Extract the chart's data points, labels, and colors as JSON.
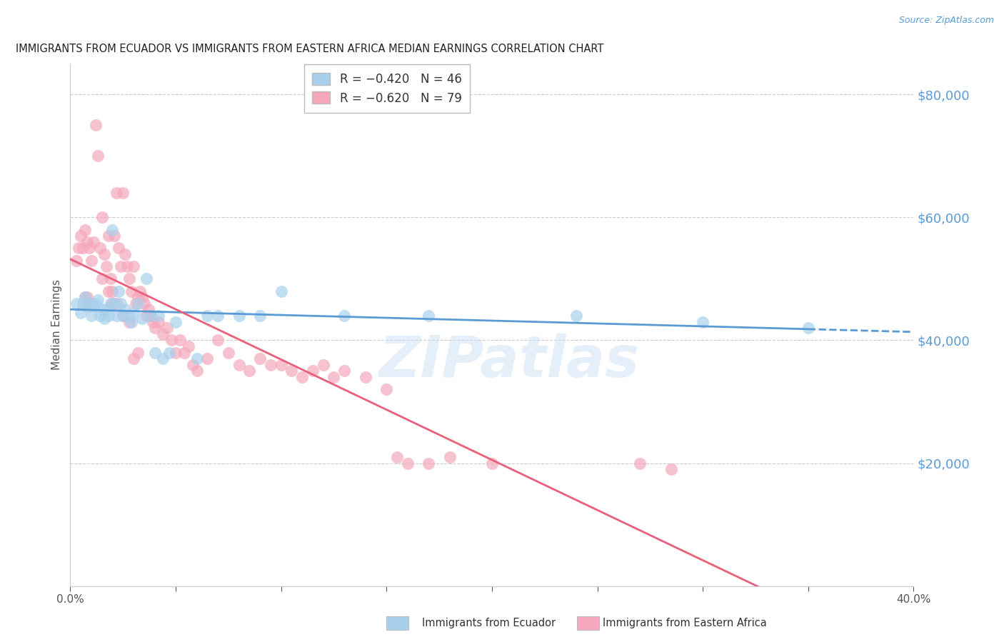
{
  "title": "IMMIGRANTS FROM ECUADOR VS IMMIGRANTS FROM EASTERN AFRICA MEDIAN EARNINGS CORRELATION CHART",
  "source": "Source: ZipAtlas.com",
  "ylabel": "Median Earnings",
  "ylim": [
    0,
    85000
  ],
  "xlim": [
    0.0,
    0.4
  ],
  "y_ticks": [
    20000,
    40000,
    60000,
    80000
  ],
  "legend_label1": "Immigrants from Ecuador",
  "legend_label2": "Immigrants from Eastern Africa",
  "ecuador_color": "#a8d0ec",
  "eastern_africa_color": "#f5a8bb",
  "trendline_ecuador_color": "#5b9bd5",
  "trendline_eastern_africa_color": "#e8607a",
  "watermark": "ZIPatlas",
  "ecuador_points": [
    [
      0.003,
      46000
    ],
    [
      0.005,
      44500
    ],
    [
      0.006,
      46000
    ],
    [
      0.007,
      47000
    ],
    [
      0.008,
      45500
    ],
    [
      0.009,
      46000
    ],
    [
      0.01,
      44000
    ],
    [
      0.011,
      45500
    ],
    [
      0.012,
      46000
    ],
    [
      0.013,
      46500
    ],
    [
      0.014,
      44000
    ],
    [
      0.015,
      45000
    ],
    [
      0.016,
      43500
    ],
    [
      0.017,
      45000
    ],
    [
      0.018,
      44000
    ],
    [
      0.019,
      46000
    ],
    [
      0.02,
      58000
    ],
    [
      0.021,
      46000
    ],
    [
      0.022,
      44000
    ],
    [
      0.023,
      48000
    ],
    [
      0.024,
      46000
    ],
    [
      0.025,
      44000
    ],
    [
      0.026,
      45000
    ],
    [
      0.028,
      44000
    ],
    [
      0.029,
      43000
    ],
    [
      0.03,
      44500
    ],
    [
      0.032,
      46000
    ],
    [
      0.034,
      43500
    ],
    [
      0.036,
      50000
    ],
    [
      0.038,
      44000
    ],
    [
      0.04,
      38000
    ],
    [
      0.042,
      44000
    ],
    [
      0.044,
      37000
    ],
    [
      0.047,
      38000
    ],
    [
      0.05,
      43000
    ],
    [
      0.06,
      37000
    ],
    [
      0.065,
      44000
    ],
    [
      0.07,
      44000
    ],
    [
      0.08,
      44000
    ],
    [
      0.09,
      44000
    ],
    [
      0.1,
      48000
    ],
    [
      0.13,
      44000
    ],
    [
      0.17,
      44000
    ],
    [
      0.24,
      44000
    ],
    [
      0.3,
      43000
    ],
    [
      0.35,
      42000
    ]
  ],
  "eastern_africa_points": [
    [
      0.003,
      53000
    ],
    [
      0.004,
      55000
    ],
    [
      0.005,
      57000
    ],
    [
      0.006,
      55000
    ],
    [
      0.007,
      58000
    ],
    [
      0.008,
      56000
    ],
    [
      0.009,
      55000
    ],
    [
      0.01,
      53000
    ],
    [
      0.011,
      56000
    ],
    [
      0.012,
      75000
    ],
    [
      0.013,
      70000
    ],
    [
      0.014,
      55000
    ],
    [
      0.015,
      60000
    ],
    [
      0.016,
      54000
    ],
    [
      0.017,
      52000
    ],
    [
      0.018,
      57000
    ],
    [
      0.019,
      50000
    ],
    [
      0.02,
      48000
    ],
    [
      0.021,
      57000
    ],
    [
      0.022,
      64000
    ],
    [
      0.023,
      55000
    ],
    [
      0.024,
      52000
    ],
    [
      0.025,
      64000
    ],
    [
      0.026,
      54000
    ],
    [
      0.027,
      52000
    ],
    [
      0.028,
      50000
    ],
    [
      0.029,
      48000
    ],
    [
      0.03,
      52000
    ],
    [
      0.031,
      46000
    ],
    [
      0.032,
      47000
    ],
    [
      0.033,
      48000
    ],
    [
      0.034,
      47000
    ],
    [
      0.035,
      46000
    ],
    [
      0.036,
      44000
    ],
    [
      0.037,
      45000
    ],
    [
      0.038,
      44000
    ],
    [
      0.039,
      43000
    ],
    [
      0.04,
      42000
    ],
    [
      0.042,
      43000
    ],
    [
      0.044,
      41000
    ],
    [
      0.046,
      42000
    ],
    [
      0.048,
      40000
    ],
    [
      0.05,
      38000
    ],
    [
      0.052,
      40000
    ],
    [
      0.054,
      38000
    ],
    [
      0.056,
      39000
    ],
    [
      0.058,
      36000
    ],
    [
      0.06,
      35000
    ],
    [
      0.065,
      37000
    ],
    [
      0.07,
      40000
    ],
    [
      0.075,
      38000
    ],
    [
      0.08,
      36000
    ],
    [
      0.085,
      35000
    ],
    [
      0.09,
      37000
    ],
    [
      0.095,
      36000
    ],
    [
      0.1,
      36000
    ],
    [
      0.105,
      35000
    ],
    [
      0.11,
      34000
    ],
    [
      0.115,
      35000
    ],
    [
      0.12,
      36000
    ],
    [
      0.125,
      34000
    ],
    [
      0.13,
      35000
    ],
    [
      0.14,
      34000
    ],
    [
      0.15,
      32000
    ],
    [
      0.007,
      47000
    ],
    [
      0.008,
      47000
    ],
    [
      0.009,
      46000
    ],
    [
      0.01,
      46000
    ],
    [
      0.015,
      50000
    ],
    [
      0.018,
      48000
    ],
    [
      0.02,
      46000
    ],
    [
      0.022,
      46000
    ],
    [
      0.025,
      44000
    ],
    [
      0.028,
      43000
    ],
    [
      0.03,
      37000
    ],
    [
      0.032,
      38000
    ],
    [
      0.17,
      20000
    ],
    [
      0.2,
      20000
    ],
    [
      0.27,
      20000
    ],
    [
      0.285,
      19000
    ],
    [
      0.155,
      21000
    ],
    [
      0.16,
      20000
    ],
    [
      0.18,
      21000
    ]
  ]
}
